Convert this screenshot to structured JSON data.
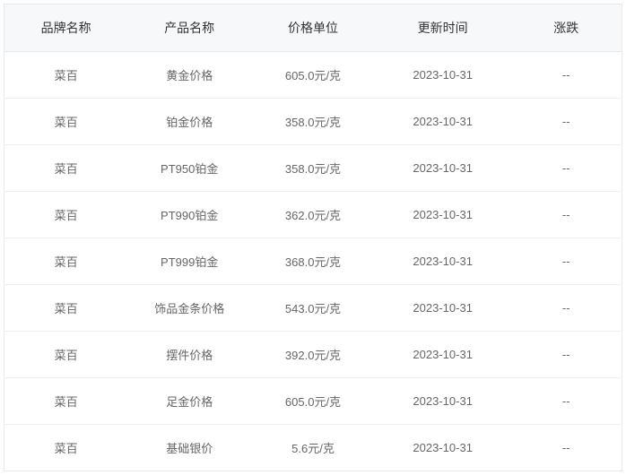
{
  "table": {
    "columns": [
      "品牌名称",
      "产品名称",
      "价格单位",
      "更新时间",
      "涨跌"
    ],
    "rows": [
      [
        "菜百",
        "黄金价格",
        "605.0元/克",
        "2023-10-31",
        "--"
      ],
      [
        "菜百",
        "铂金价格",
        "358.0元/克",
        "2023-10-31",
        "--"
      ],
      [
        "菜百",
        "PT950铂金",
        "358.0元/克",
        "2023-10-31",
        "--"
      ],
      [
        "菜百",
        "PT990铂金",
        "362.0元/克",
        "2023-10-31",
        "--"
      ],
      [
        "菜百",
        "PT999铂金",
        "368.0元/克",
        "2023-10-31",
        "--"
      ],
      [
        "菜百",
        "饰品金条价格",
        "543.0元/克",
        "2023-10-31",
        "--"
      ],
      [
        "菜百",
        "摆件价格",
        "392.0元/克",
        "2023-10-31",
        "--"
      ],
      [
        "菜百",
        "足金价格",
        "605.0元/克",
        "2023-10-31",
        "--"
      ],
      [
        "菜百",
        "基础银价",
        "5.6元/克",
        "2023-10-31",
        "--"
      ]
    ],
    "header_bg": "#f7f8fa",
    "header_color": "#333333",
    "cell_color": "#666666",
    "border_color": "#e8e8e8",
    "row_border_color": "#f0f0f0",
    "header_fontsize": 14,
    "cell_fontsize": 13
  }
}
